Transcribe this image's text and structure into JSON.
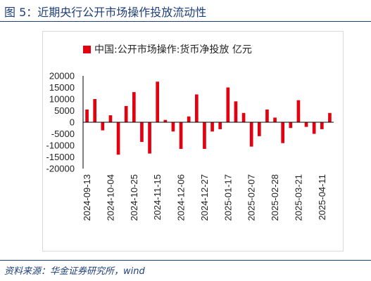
{
  "figure": {
    "title": "图 5：近期央行公开市场操作投放流动性",
    "source": "资料来源：华金证券研究所，wind"
  },
  "colors": {
    "bar": "#e3000f",
    "title": "#1f3f7a",
    "axis": "#000000"
  },
  "chart_data": {
    "type": "bar",
    "legend": {
      "label": "中国:公开市场操作:货币净投放 亿元",
      "position": "top"
    },
    "yticks": [
      "20000",
      "15000",
      "10000",
      "5000",
      "0",
      "-5000",
      "-10000",
      "-15000",
      "-20000"
    ],
    "ylim": [
      -20000,
      20000
    ],
    "xtick_labels": [
      "2024-09-13",
      "2024-10-04",
      "2024-10-25",
      "2024-11-15",
      "2024-12-06",
      "2024-12-27",
      "2025-01-17",
      "2025-02-07",
      "2025-02-28",
      "2025-03-21",
      "2025-04-11"
    ],
    "values": [
      5500,
      10000,
      -3500,
      3000,
      -14000,
      7000,
      13000,
      -8500,
      -13500,
      17500,
      1000,
      -4000,
      -11500,
      2500,
      12000,
      -11500,
      -4000,
      -3000,
      15000,
      9000,
      4000,
      -10500,
      -6000,
      5500,
      2000,
      -9000,
      -2500,
      9500,
      -2000,
      -5000,
      -3000,
      4000
    ],
    "grid": false
  }
}
